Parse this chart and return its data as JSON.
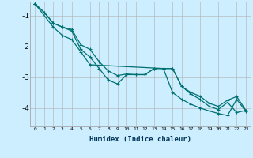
{
  "xlabel": "Humidex (Indice chaleur)",
  "bg_color": "#cceeff",
  "grid_color": "#b0b0b0",
  "line_color": "#007070",
  "xlim": [
    -0.5,
    23.5
  ],
  "ylim": [
    -4.6,
    -0.55
  ],
  "yticks": [
    -4,
    -3,
    -2,
    -1
  ],
  "xticks": [
    0,
    1,
    2,
    3,
    4,
    5,
    6,
    7,
    8,
    9,
    10,
    11,
    12,
    13,
    14,
    15,
    16,
    17,
    18,
    19,
    20,
    21,
    22,
    23
  ],
  "line1_x": [
    0,
    1,
    2,
    3,
    4,
    5,
    6,
    7,
    8,
    9,
    10,
    11,
    12,
    13,
    14,
    15,
    16,
    17,
    18,
    19,
    20,
    21,
    22,
    23
  ],
  "line1_y": [
    -0.62,
    -0.9,
    -1.25,
    -1.38,
    -1.45,
    -1.95,
    -2.1,
    -2.5,
    -2.8,
    -2.95,
    -2.9,
    -2.92,
    -2.92,
    -2.72,
    -2.72,
    -2.72,
    -3.3,
    -3.5,
    -3.62,
    -3.85,
    -3.95,
    -3.75,
    -3.63,
    -4.08
  ],
  "line2_x": [
    0,
    1,
    2,
    3,
    4,
    5,
    6,
    7,
    8,
    9,
    10,
    11,
    12,
    13,
    14,
    15,
    16,
    17,
    18,
    19,
    20,
    21,
    22,
    23
  ],
  "line2_y": [
    -0.62,
    -0.9,
    -1.25,
    -1.38,
    -1.5,
    -2.1,
    -2.35,
    -2.72,
    -3.1,
    -3.22,
    -2.92,
    -2.92,
    -2.92,
    -2.72,
    -2.72,
    -2.72,
    -3.3,
    -3.55,
    -3.72,
    -3.95,
    -4.05,
    -3.82,
    -4.15,
    -4.08
  ],
  "line3_x": [
    0,
    2,
    3,
    4,
    5,
    6,
    14,
    15,
    16,
    17,
    18,
    19,
    20,
    21,
    22,
    23
  ],
  "line3_y": [
    -0.62,
    -1.38,
    -1.65,
    -1.78,
    -2.18,
    -2.6,
    -2.72,
    -3.5,
    -3.72,
    -3.88,
    -4.0,
    -4.1,
    -4.18,
    -4.25,
    -3.72,
    -4.12
  ]
}
